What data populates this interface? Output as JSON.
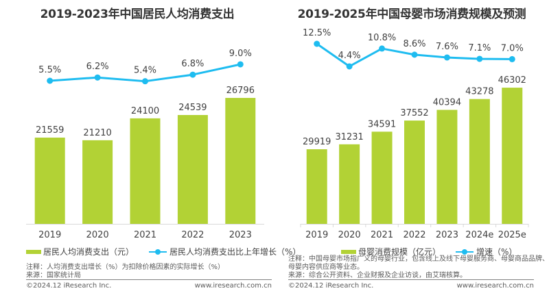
{
  "chart_data": [
    {
      "type": "bar",
      "title": "2019-2023年中国居民人均消费支出",
      "categories": [
        "2019",
        "2020",
        "2021",
        "2022",
        "2023"
      ],
      "series": [
        {
          "name": "居民人均消费支出（元）",
          "type": "bar",
          "color": "#b2d235",
          "values": [
            21559,
            21210,
            24100,
            24539,
            26796
          ],
          "labels": [
            "21559",
            "21210",
            "24100",
            "24539",
            "26796"
          ]
        },
        {
          "name": "居民人均消费支出比上年增长（%）",
          "type": "line",
          "color": "#1ebcf0",
          "values": [
            5.5,
            6.2,
            5.4,
            6.8,
            9.0
          ],
          "labels": [
            "5.5%",
            "6.2%",
            "5.4%",
            "6.8%",
            "9.0%"
          ]
        }
      ],
      "xlabel": "",
      "ylabel": "",
      "grid": false,
      "legend": "bottom"
    },
    {
      "type": "bar",
      "title": "2019-2025年中国母婴市场消费规模及预测",
      "categories": [
        "2019",
        "2020",
        "2021",
        "2022",
        "2023",
        "2024e",
        "2025e"
      ],
      "series": [
        {
          "name": "母婴消费规模（亿元）",
          "type": "bar",
          "color": "#b2d235",
          "values": [
            29919,
            31231,
            34591,
            37552,
            40394,
            43278,
            46302
          ],
          "labels": [
            "29919",
            "31231",
            "34591",
            "37552",
            "40394",
            "43278",
            "46302"
          ]
        },
        {
          "name": "增速（%）",
          "type": "line",
          "color": "#1ebcf0",
          "values": [
            12.5,
            4.4,
            10.8,
            8.6,
            7.6,
            7.1,
            7.0
          ],
          "labels": [
            "12.5%",
            "4.4%",
            "10.8%",
            "8.6%",
            "7.6%",
            "7.1%",
            "7.0%"
          ]
        }
      ],
      "xlabel": "",
      "ylabel": "",
      "grid": false,
      "legend": "bottom"
    }
  ],
  "left": {
    "title": "2019-2023年中国居民人均消费支出",
    "legend_bar": "居民人均消费支出（元）",
    "legend_line": "居民人均消费支出比上年增长（%）",
    "note": "注释：人均消费支出增长（%）为扣除价格因素的实际增长（%）",
    "source": "来源：国家统计局",
    "copyright": "©2024.12 iResearch Inc.",
    "website": "www.iresearch.com.cn"
  },
  "right": {
    "title": "2019-2025年中国母婴市场消费规模及预测",
    "legend_bar": "母婴消费规模（亿元）",
    "legend_line": "增速（%）",
    "note_line1": "注释：中国母婴市场指广义的母婴行业，包含线上及线下母婴服务商、母婴商品品牌、",
    "note_line2": "母婴内容供应商等业态。",
    "source": "来源：综合公开资料、企业财报及企业访谈，由艾瑞核算。",
    "copyright": "©2024.12 iResearch Inc.",
    "website": "www.iresearch.com.cn"
  },
  "colors": {
    "bar": "#b2d235",
    "line": "#1ebcf0",
    "axis": "#d9d9d9",
    "text": "#404040"
  }
}
